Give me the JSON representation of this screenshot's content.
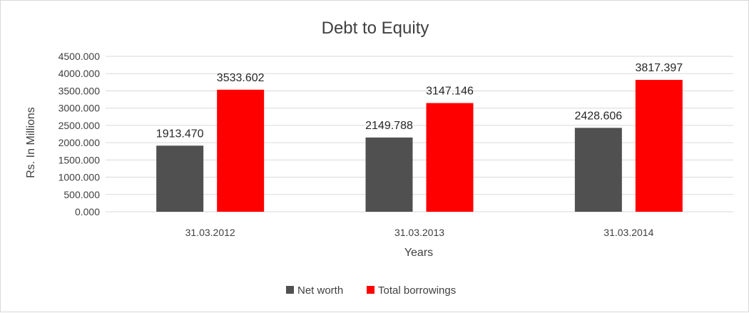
{
  "chart_data": {
    "type": "bar",
    "title": "Debt to Equity",
    "xlabel": "Years",
    "ylabel": "Rs. In Millions",
    "categories": [
      "31.03.2012",
      "31.03.2013",
      "31.03.2014"
    ],
    "series": [
      {
        "name": "Net worth",
        "color": "#505050",
        "values": [
          1913.47,
          2149.788,
          2428.606
        ],
        "labels": [
          "1913.470",
          "2149.788",
          "2428.606"
        ]
      },
      {
        "name": "Total borrowings",
        "color": "#ff0000",
        "values": [
          3533.602,
          3147.146,
          3817.397
        ],
        "labels": [
          "3533.602",
          "3147.146",
          "3817.397"
        ]
      }
    ],
    "ylim": [
      0,
      4500
    ],
    "yticks": [
      0,
      500,
      1000,
      1500,
      2000,
      2500,
      3000,
      3500,
      4000,
      4500
    ],
    "ytick_labels": [
      "0.000",
      "500.000",
      "1000.000",
      "1500.000",
      "2000.000",
      "2500.000",
      "3000.000",
      "3500.000",
      "4000.000",
      "4500.000"
    ],
    "grid": true,
    "legend_position": "bottom"
  }
}
